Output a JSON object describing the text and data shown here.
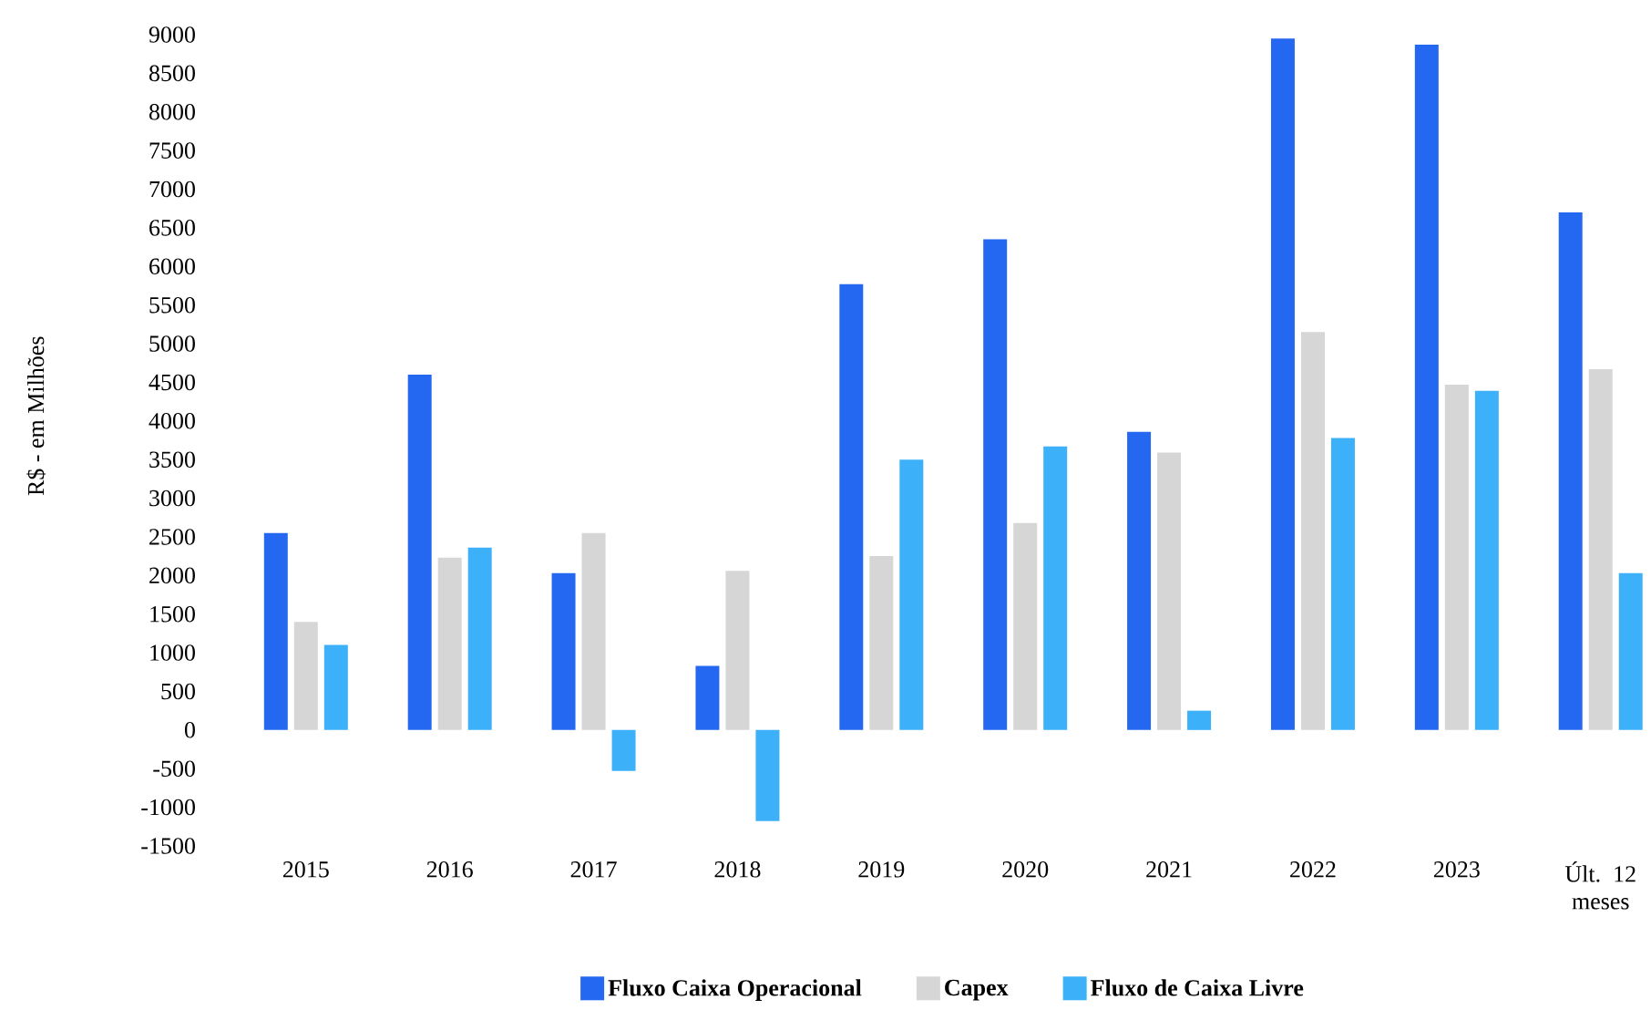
{
  "chart_data": {
    "type": "bar",
    "ylabel": "R$ - em Milhões",
    "categories": [
      "2015",
      "2016",
      "2017",
      "2018",
      "2019",
      "2020",
      "2021",
      "2022",
      "2023",
      "Últ. 12 meses"
    ],
    "series": [
      {
        "name": "Fluxo Caixa Operacional",
        "color": "#2468f2",
        "values": [
          2550,
          4600,
          2030,
          830,
          5770,
          6350,
          3860,
          8950,
          8870,
          6700
        ]
      },
      {
        "name": "Capex",
        "color": "#d6d6d6",
        "values": [
          1400,
          2230,
          2550,
          2060,
          2250,
          2680,
          3590,
          5150,
          4470,
          4670
        ]
      },
      {
        "name": "Fluxo de Caixa Livre",
        "color": "#3cb0f9",
        "values": [
          1100,
          2360,
          -530,
          -1180,
          3500,
          3670,
          250,
          3780,
          4390,
          2030
        ]
      }
    ],
    "ylim": [
      -1500,
      9000
    ],
    "yticks": [
      -1500,
      -1000,
      -500,
      0,
      500,
      1000,
      1500,
      2000,
      2500,
      3000,
      3500,
      4000,
      4500,
      5000,
      5500,
      6000,
      6500,
      7000,
      7500,
      8000,
      8500,
      9000
    ],
    "grid": false,
    "legend": "bottom"
  }
}
